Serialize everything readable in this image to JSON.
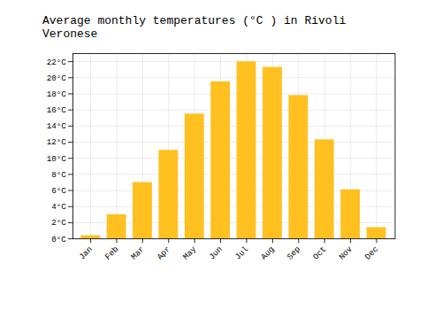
{
  "chart_data": {
    "type": "bar",
    "title": "Average monthly temperatures (°C ) in Rivoli Veronese",
    "categories": [
      "Jan",
      "Feb",
      "Mar",
      "Apr",
      "May",
      "Jun",
      "Jul",
      "Aug",
      "Sep",
      "Oct",
      "Nov",
      "Dec"
    ],
    "values": [
      0.4,
      3.0,
      7.0,
      11.0,
      15.5,
      19.5,
      22.0,
      21.3,
      17.8,
      12.3,
      6.1,
      1.4
    ],
    "color": "#FFC020",
    "ylim": [
      0,
      23
    ],
    "yticks": [
      {
        "value": 0,
        "label": "0°C"
      },
      {
        "value": 2,
        "label": "2°C"
      },
      {
        "value": 4,
        "label": "4°C"
      },
      {
        "value": 6,
        "label": "6°C"
      },
      {
        "value": 8,
        "label": "8°C"
      },
      {
        "value": 10,
        "label": "10°C"
      },
      {
        "value": 12,
        "label": "12°C"
      },
      {
        "value": 14,
        "label": "14°C"
      },
      {
        "value": 16,
        "label": "16°C"
      },
      {
        "value": 18,
        "label": "18°C"
      },
      {
        "value": 20,
        "label": "20°C"
      },
      {
        "value": 22,
        "label": "22°C"
      }
    ],
    "grid": true
  }
}
